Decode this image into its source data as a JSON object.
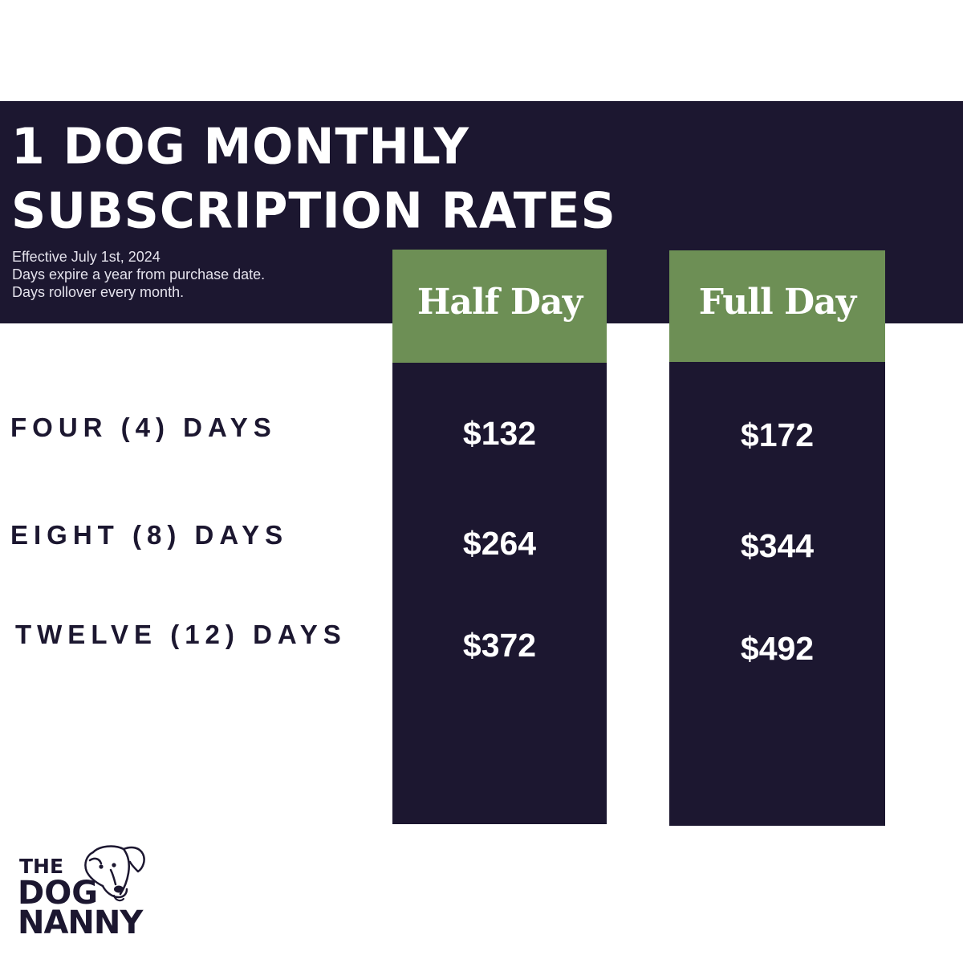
{
  "header": {
    "title_line1": "1 DOG MONTHLY",
    "title_line2": "SUBSCRIPTION RATES",
    "note_line1": "Effective July 1st, 2024",
    "note_line2": "Days expire a year from purchase date.",
    "note_line3": "Days rollover every month."
  },
  "columns": [
    {
      "label": "Half Day"
    },
    {
      "label": "Full Day"
    }
  ],
  "rows": [
    {
      "label": "FOUR (4) DAYS",
      "half_day": "$132",
      "full_day": "$172"
    },
    {
      "label": "EIGHT (8) DAYS",
      "half_day": "$264",
      "full_day": "$344"
    },
    {
      "label": "TWELVE (12) DAYS",
      "half_day": "$372",
      "full_day": "$492"
    }
  ],
  "logo": {
    "line1": "THE",
    "line2": "DOG",
    "line3": "NANNY",
    "icon": "dog-face-icon"
  },
  "colors": {
    "navy": "#1c1730",
    "green": "#6d8f55",
    "white": "#ffffff"
  }
}
